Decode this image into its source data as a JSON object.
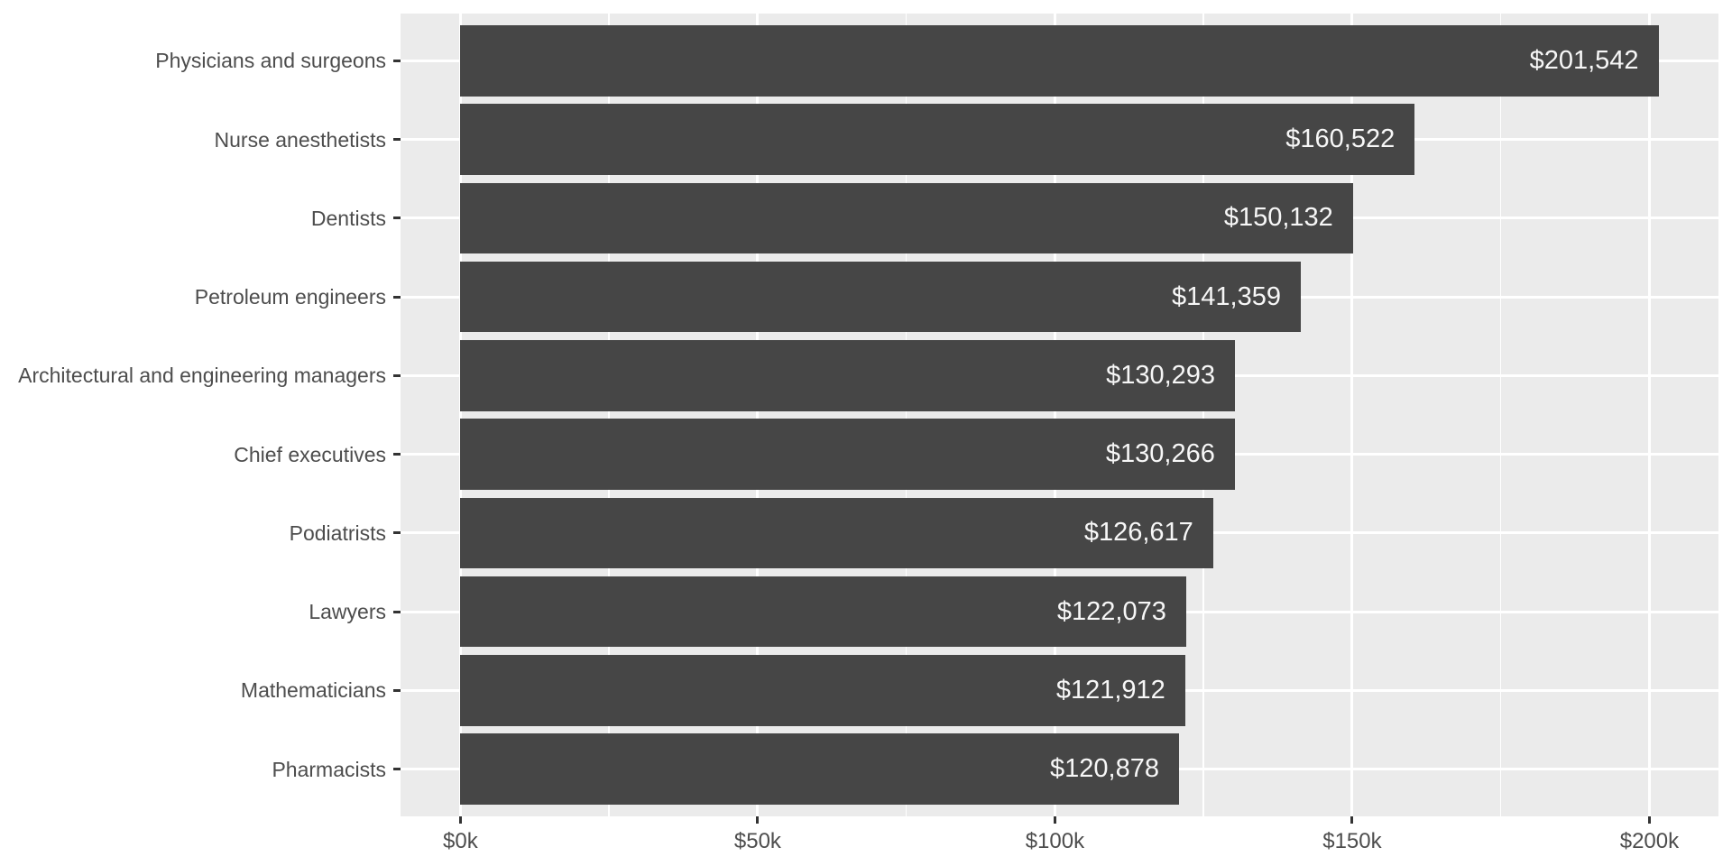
{
  "figure": {
    "background_color": "#FFFFFF",
    "panel_background_color": "#EBEBEB",
    "bar_fill_color": "#464646",
    "bar_label_color": "#F7F7F7",
    "grid_major_color": "#FFFFFF",
    "grid_minor_color": "#FFFFFF",
    "axis_text_color": "#4D4D4D",
    "tick_mark_color": "#333333"
  },
  "chart_data": {
    "type": "bar",
    "orientation": "horizontal",
    "title": "",
    "subtitle": "",
    "xlabel": "",
    "ylabel": "",
    "legend": "none",
    "grid": true,
    "categories": [
      "Physicians and surgeons",
      "Nurse anesthetists",
      "Dentists",
      "Petroleum engineers",
      "Architectural and engineering managers",
      "Chief executives",
      "Podiatrists",
      "Lawyers",
      "Mathematicians",
      "Pharmacists"
    ],
    "values": [
      201542,
      160522,
      150132,
      141359,
      130293,
      130266,
      126617,
      122073,
      121912,
      120878
    ],
    "value_labels": [
      "$201,542",
      "$160,522",
      "$150,132",
      "$141,359",
      "$130,293",
      "$130,266",
      "$126,617",
      "$122,073",
      "$121,912",
      "$120,878"
    ],
    "x_ticks": [
      {
        "value": 0,
        "label": "$0k"
      },
      {
        "value": 50000,
        "label": "$50k"
      },
      {
        "value": 100000,
        "label": "$100k"
      },
      {
        "value": 150000,
        "label": "$150k"
      },
      {
        "value": 200000,
        "label": "$200k"
      }
    ],
    "x_minor_ticks": [
      25000,
      75000,
      125000,
      175000
    ],
    "x_domain": [
      -10077,
      211619
    ]
  }
}
